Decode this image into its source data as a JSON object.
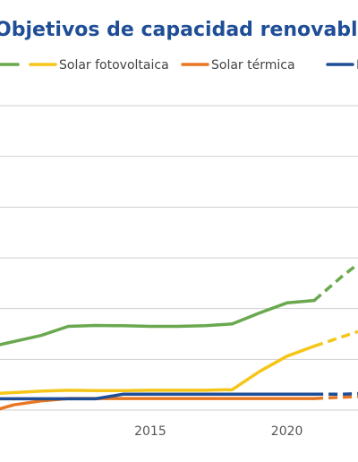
{
  "chart_data": {
    "type": "line",
    "title": "Objetivos de capacidad renovable",
    "xlabel": "",
    "ylabel": "",
    "x_tick_labels": [
      "2015",
      "2020"
    ],
    "xlim": [
      2009.5,
      2022.6
    ],
    "ylim": [
      0,
      1
    ],
    "y_value_labels_visible": false,
    "grid": true,
    "legend_position": "top",
    "series": [
      {
        "name": "",
        "color": "#6AA84F",
        "x": [
          2009.5,
          2011,
          2012,
          2013,
          2014,
          2015,
          2016,
          2017,
          2018,
          2019,
          2020,
          2021,
          2022,
          2022.6
        ],
        "y": [
          0.215,
          0.245,
          0.275,
          0.278,
          0.277,
          0.275,
          0.275,
          0.277,
          0.283,
          0.319,
          0.352,
          0.36,
          0.438,
          0.48
        ],
        "dashed_from_x": 2021
      },
      {
        "name": "Solar fotovoltaica",
        "color": "#F5C518",
        "x": [
          2009.5,
          2011,
          2012,
          2013,
          2014,
          2015,
          2016,
          2017,
          2018,
          2019,
          2020,
          2021,
          2022,
          2022.6
        ],
        "y": [
          0.055,
          0.062,
          0.065,
          0.064,
          0.064,
          0.065,
          0.065,
          0.065,
          0.067,
          0.127,
          0.177,
          0.21,
          0.24,
          0.258
        ],
        "dashed_from_x": 2021
      },
      {
        "name": "Solar térmica",
        "color": "#E87722",
        "x": [
          2009.5,
          2010,
          2011,
          2012,
          2013,
          2014,
          2015,
          2016,
          2017,
          2018,
          2019,
          2020,
          2021,
          2022,
          2022.6
        ],
        "y": [
          0.004,
          0.017,
          0.03,
          0.038,
          0.038,
          0.038,
          0.038,
          0.038,
          0.038,
          0.038,
          0.038,
          0.038,
          0.038,
          0.042,
          0.044
        ],
        "dashed_from_x": 2021
      },
      {
        "name": "",
        "color": "#1F4E97",
        "x": [
          2009.5,
          2011,
          2012,
          2013,
          2014,
          2015,
          2016,
          2017,
          2018,
          2019,
          2020,
          2021,
          2022,
          2022.6
        ],
        "y": [
          0.037,
          0.037,
          0.037,
          0.037,
          0.052,
          0.052,
          0.052,
          0.052,
          0.052,
          0.052,
          0.052,
          0.052,
          0.052,
          0.054
        ],
        "dashed_from_x": 2021
      }
    ],
    "legend": [
      {
        "label": "",
        "color": "#6AA84F"
      },
      {
        "label": "Solar fotovoltaica",
        "color": "#F5C518"
      },
      {
        "label": "Solar térmica",
        "color": "#E87722"
      },
      {
        "label": "B",
        "color": "#1F4E97"
      }
    ]
  }
}
